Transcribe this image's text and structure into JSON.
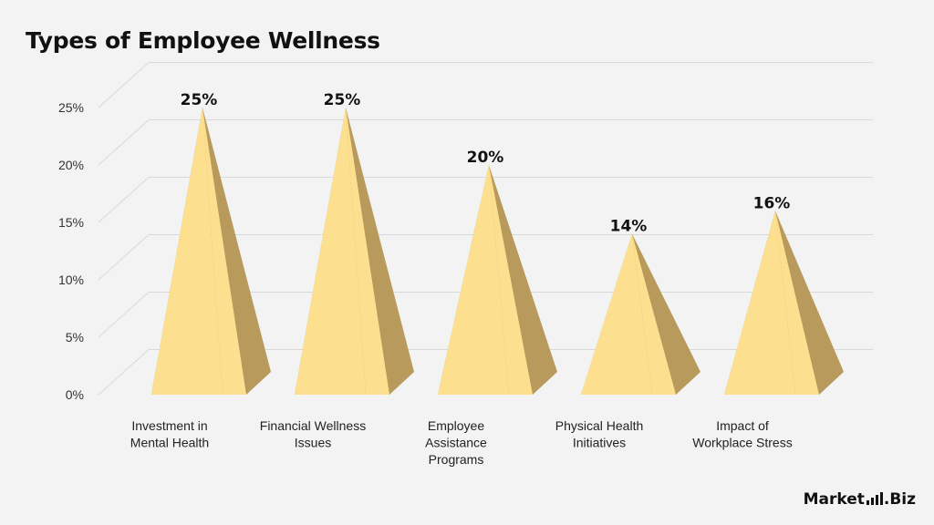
{
  "title": "Types of Employee Wellness",
  "brand": {
    "name_a": "Market",
    "name_b": ".Biz"
  },
  "colors": {
    "front": "#fde08f",
    "side": "#b89a5c",
    "grid": "#d9d9d9",
    "text": "#222222"
  },
  "chart_data": {
    "type": "bar",
    "shape": "pyramid-3d",
    "title": "Types of Employee Wellness",
    "categories": [
      [
        "Investment in",
        "Mental Health"
      ],
      [
        "Financial Wellness",
        "Issues"
      ],
      [
        "Employee",
        "Assistance",
        "Programs"
      ],
      [
        "Physical Health",
        "Initiatives"
      ],
      [
        "Impact of",
        "Workplace Stress"
      ]
    ],
    "values": [
      25,
      25,
      20,
      14,
      16
    ],
    "data_labels": [
      "25%",
      "25%",
      "20%",
      "14%",
      "16%"
    ],
    "ylim": [
      0,
      25
    ],
    "yticks": [
      "0%",
      "5%",
      "10%",
      "15%",
      "20%",
      "25%"
    ],
    "xlabel": "",
    "ylabel": "",
    "grid": true,
    "legend": "none"
  }
}
